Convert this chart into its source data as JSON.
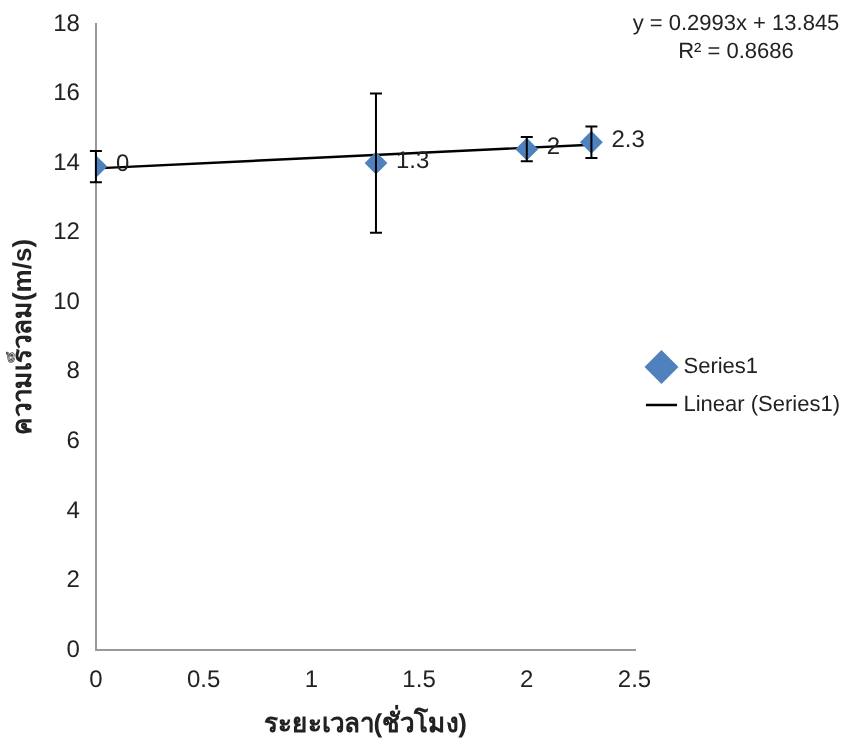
{
  "chart_data": {
    "type": "scatter",
    "xlabel": "ระยะเวลา(ชั่วโมง)",
    "ylabel": "ความเร็วลม(m/s)",
    "xlim": [
      0,
      2.5
    ],
    "xticks": [
      0,
      0.5,
      1,
      1.5,
      2,
      2.5
    ],
    "ylim": [
      0,
      18
    ],
    "yticks": [
      0,
      2,
      4,
      6,
      8,
      10,
      12,
      14,
      16,
      18
    ],
    "grid": false,
    "legend": "right",
    "marker": "diamond",
    "annotations": [
      "y = 0.2993x + 13.845",
      "R² = 0.8686",
      {
        "text": "0",
        "x": 0,
        "y": 13.9
      },
      {
        "text": "1.3",
        "x": 1.3,
        "y": 14.0
      },
      {
        "text": "2",
        "x": 2,
        "y": 14.4
      },
      {
        "text": "2.3",
        "x": 2.3,
        "y": 14.6
      }
    ],
    "series": [
      {
        "name": "Series1",
        "color": "#4f81bd",
        "x": [
          0,
          1.3,
          2,
          2.3
        ],
        "values": [
          13.9,
          14.0,
          14.4,
          14.6
        ],
        "errors": [
          0.45,
          2,
          0.35,
          0.45
        ]
      },
      {
        "name": "Linear (Series1)",
        "type": "line",
        "color": "#000000",
        "marker": "none",
        "x": [
          0,
          2.3
        ],
        "values": [
          13.85,
          14.53
        ]
      }
    ]
  }
}
